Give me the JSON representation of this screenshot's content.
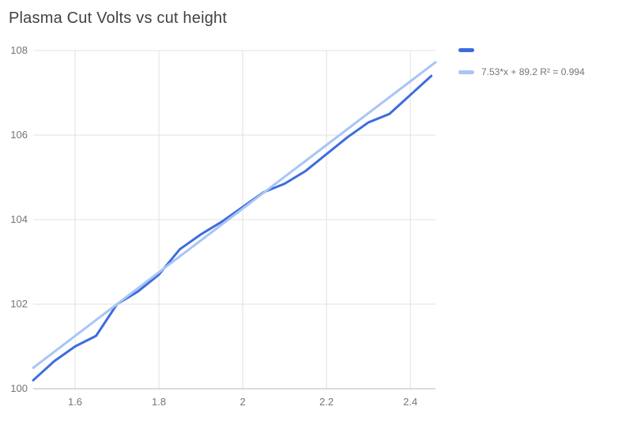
{
  "legend": {
    "series_label": "",
    "trend_label": "7.53*x + 89.2 R² = 0.994"
  },
  "colors": {
    "grid": "#e0e0e0",
    "axis_line": "#b7b7b7",
    "axis_text": "#757575",
    "title": "#424242"
  },
  "chart_data": {
    "type": "line",
    "title": "Plasma Cut Volts vs cut height",
    "xlabel": "",
    "ylabel": "",
    "xlim": [
      1.5,
      2.46
    ],
    "ylim": [
      100,
      108
    ],
    "grid": true,
    "legend_position": "right",
    "x_ticks": [
      1.6,
      1.8,
      2,
      2.2,
      2.4
    ],
    "x_tick_labels": [
      "1.6",
      "1.8",
      "2",
      "2.2",
      "2.4"
    ],
    "y_ticks": [
      100,
      102,
      104,
      106,
      108
    ],
    "y_tick_labels": [
      "100",
      "102",
      "104",
      "106",
      "108"
    ],
    "series": [
      {
        "name": "",
        "color": "#3d6cdd",
        "width": 3,
        "x": [
          1.5,
          1.55,
          1.6,
          1.65,
          1.7,
          1.75,
          1.8,
          1.85,
          1.9,
          1.95,
          2.0,
          2.05,
          2.1,
          2.15,
          2.2,
          2.25,
          2.3,
          2.35,
          2.4,
          2.45
        ],
        "y": [
          100.2,
          100.65,
          101.0,
          101.25,
          102.0,
          102.3,
          102.7,
          103.3,
          103.65,
          103.95,
          104.3,
          104.65,
          104.85,
          105.15,
          105.55,
          105.95,
          106.3,
          106.5,
          106.95,
          107.4
        ]
      },
      {
        "name": "7.53*x + 89.2 R² = 0.994",
        "color": "#a8c5f5",
        "width": 3,
        "x": [
          1.5,
          2.46
        ],
        "y": [
          100.495,
          107.724
        ]
      }
    ],
    "trendline": {
      "equation": "7.53*x + 89.2",
      "r_squared": 0.994,
      "slope": 7.53,
      "intercept": 89.2
    }
  }
}
